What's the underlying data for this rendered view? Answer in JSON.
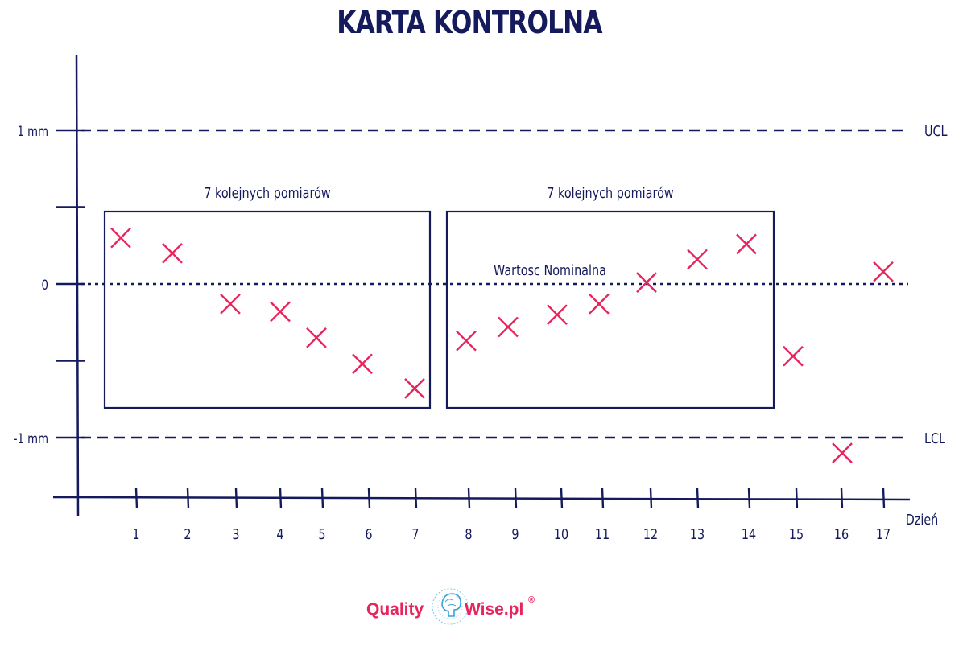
{
  "colors": {
    "ink": "#141a5c",
    "marker": "#e8245d",
    "brand": "#e8245d",
    "globe": "#3aa0d8"
  },
  "chart_data": {
    "type": "scatter",
    "title": "KARTA KONTROLNA",
    "xlabel": "Dzień",
    "ylabel": "",
    "ylim": [
      -1.4,
      1.35
    ],
    "y_ticks": [
      {
        "value": 1,
        "label": "1 mm"
      },
      {
        "value": 0.5,
        "label": ""
      },
      {
        "value": 0,
        "label": "0"
      },
      {
        "value": -0.5,
        "label": ""
      },
      {
        "value": -1,
        "label": "-1 mm"
      }
    ],
    "x_ticks": [
      "1",
      "2",
      "3",
      "4",
      "5",
      "6",
      "7",
      "8",
      "9",
      "10",
      "11",
      "12",
      "13",
      "14",
      "15",
      "16",
      "17"
    ],
    "lines": [
      {
        "name": "UCL",
        "value": 1,
        "style": "dashed"
      },
      {
        "name": "LCL",
        "value": -1,
        "style": "dashed"
      },
      {
        "name": "Wartosc Nominalna",
        "value": 0,
        "style": "dotted"
      }
    ],
    "groups": [
      {
        "label": "7 kolejnych pomiarów",
        "from": 1,
        "to": 7
      },
      {
        "label": "7 kolejnych pomiarów",
        "from": 8,
        "to": 14
      }
    ],
    "series": [
      {
        "x": [
          1,
          2,
          3,
          4,
          5,
          6,
          7,
          8,
          9,
          10,
          11,
          12,
          13,
          14,
          15,
          16,
          17
        ],
        "y": [
          0.3,
          0.2,
          -0.13,
          -0.18,
          -0.35,
          -0.52,
          -0.68,
          -0.37,
          -0.28,
          -0.2,
          -0.13,
          0.01,
          0.16,
          0.26,
          -0.47,
          -1.1,
          0.08
        ]
      }
    ]
  },
  "logo": {
    "quality": "Quality",
    "wise": "Wise.pl",
    "reg": "®"
  }
}
